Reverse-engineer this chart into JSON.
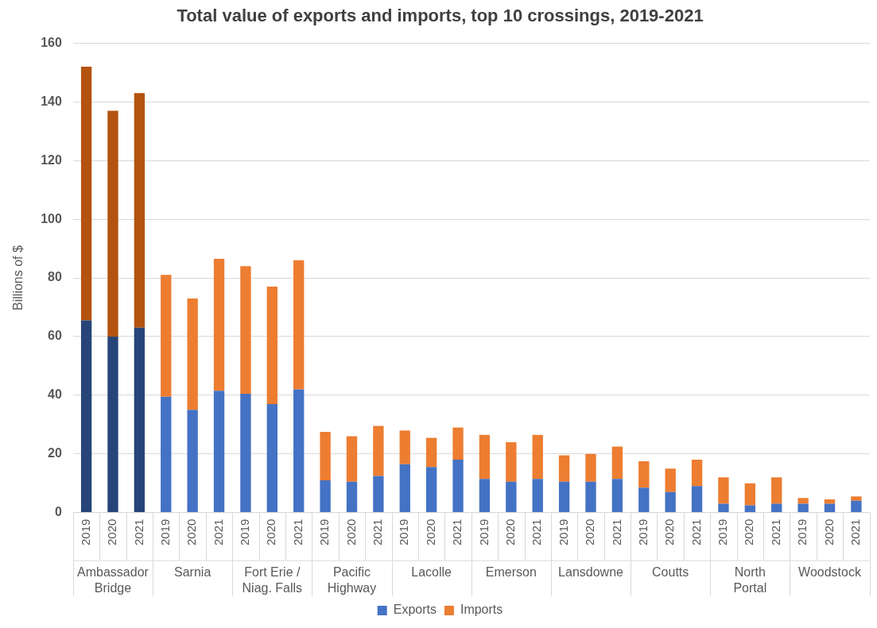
{
  "chart_data": {
    "type": "bar",
    "title": "Total value of exports and imports, top 10 crossings, 2019-2021",
    "ylabel": "Billions of $",
    "categories": [
      "2019",
      "2020",
      "2021",
      "2019",
      "2020",
      "2021",
      "2019",
      "2020",
      "2021",
      "2019",
      "2020",
      "2021",
      "2019",
      "2020",
      "2021",
      "2019",
      "2020",
      "2021",
      "2019",
      "2020",
      "2021",
      "2019",
      "2020",
      "2021",
      "2019",
      "2020",
      "2021",
      "2019",
      "2020",
      "2021"
    ],
    "annotations": [
      "Ambassador Bridge",
      "Sarnia",
      "Fort Erie / Niag. Falls",
      "Pacific Highway",
      "Lacolle",
      "Emerson",
      "Lansdowne",
      "Coutts",
      "North Portal",
      "Woodstock"
    ],
    "stacked": true,
    "series": [
      {
        "name": "Exports",
        "color": "#4472c4",
        "colors": [
          "#264478",
          "#264478",
          "#264478",
          "#4472c4",
          "#4472c4",
          "#4472c4",
          "#4472c4",
          "#4472c4",
          "#4472c4",
          "#4472c4",
          "#4472c4",
          "#4472c4",
          "#4472c4",
          "#4472c4",
          "#4472c4",
          "#4472c4",
          "#4472c4",
          "#4472c4",
          "#4472c4",
          "#4472c4",
          "#4472c4",
          "#4472c4",
          "#4472c4",
          "#4472c4",
          "#4472c4",
          "#4472c4",
          "#4472c4",
          "#4472c4",
          "#4472c4",
          "#4472c4"
        ],
        "values": [
          65.5,
          60,
          63,
          39.5,
          35,
          41.5,
          40.5,
          37,
          42,
          11,
          10.5,
          12.5,
          16.5,
          15.5,
          18,
          11.5,
          10.5,
          11.5,
          10.5,
          10.5,
          11.5,
          8.5,
          7,
          9,
          3,
          2.5,
          3,
          3,
          3,
          4
        ]
      },
      {
        "name": "Imports",
        "color": "#ed7d31",
        "colors": [
          "#b4520f",
          "#b4520f",
          "#b4520f",
          "#ed7d31",
          "#ed7d31",
          "#ed7d31",
          "#ed7d31",
          "#ed7d31",
          "#ed7d31",
          "#ed7d31",
          "#ed7d31",
          "#ed7d31",
          "#ed7d31",
          "#ed7d31",
          "#ed7d31",
          "#ed7d31",
          "#ed7d31",
          "#ed7d31",
          "#ed7d31",
          "#ed7d31",
          "#ed7d31",
          "#ed7d31",
          "#ed7d31",
          "#ed7d31",
          "#ed7d31",
          "#ed7d31",
          "#ed7d31",
          "#ed7d31",
          "#ed7d31",
          "#ed7d31"
        ],
        "values": [
          86.5,
          77,
          80,
          41.5,
          38,
          45,
          43.5,
          40,
          44,
          16.5,
          15.5,
          17,
          11.5,
          10,
          11,
          15,
          13.5,
          15,
          9,
          9.5,
          11,
          9,
          8,
          9,
          9,
          7.5,
          9,
          2,
          1.5,
          1.5
        ]
      }
    ],
    "ylim": [
      0,
      160
    ],
    "yticks": [
      0,
      20,
      40,
      60,
      80,
      100,
      120,
      140,
      160
    ],
    "grid": "y",
    "legend": "bottom"
  }
}
